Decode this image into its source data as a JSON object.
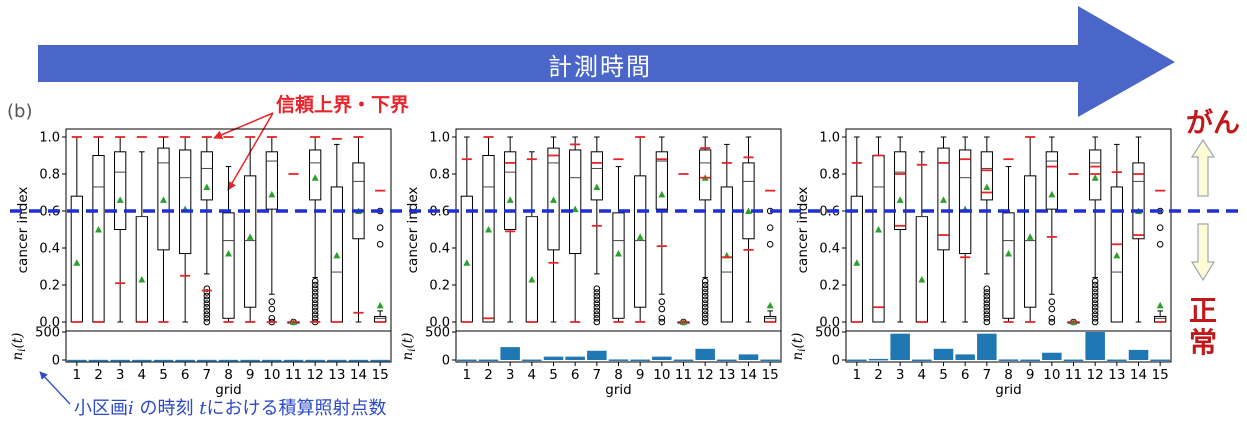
{
  "banner": {
    "label": "計測時間",
    "color": "#4a66c9"
  },
  "panel_tag": "(b)",
  "callout_bounds": {
    "text": "信頼上界・下界",
    "color": "#e8242b"
  },
  "callout_n": {
    "prefix": "小区画",
    "var_i": "i",
    "mid": " の時刻 ",
    "var_t": "t",
    "suffix": "における積算照射点数",
    "color": "#2c49c9"
  },
  "side_labels": {
    "top": "がん",
    "bottom": "正常",
    "color": "#c0181b",
    "arrow_fill": "#fffbd6",
    "arrow_stroke": "#9da8b4"
  },
  "threshold_line": {
    "value": 0.6,
    "color": "#1f2fd1"
  },
  "chart_data": [
    {
      "type": "box",
      "categories": [
        "1",
        "2",
        "3",
        "4",
        "5",
        "6",
        "7",
        "8",
        "9",
        "10",
        "11",
        "12",
        "13",
        "14",
        "15"
      ],
      "ylabel": "cancer index",
      "ylim": [
        0,
        1.0
      ],
      "yticks": [
        "0.0",
        "0.2",
        "0.4",
        "0.6",
        "0.8",
        "1.0"
      ],
      "xlabel": "grid",
      "box_stats": [
        {
          "q1": 0.0,
          "median": 0.0,
          "q3": 0.68,
          "wlo": 0.0,
          "whi": 1.0,
          "mean": 0.32,
          "out": []
        },
        {
          "q1": 0.0,
          "median": 0.73,
          "q3": 0.9,
          "wlo": 0.0,
          "whi": 1.0,
          "mean": 0.5,
          "out": []
        },
        {
          "q1": 0.5,
          "median": 0.81,
          "q3": 0.92,
          "wlo": 0.0,
          "whi": 1.0,
          "mean": 0.66,
          "out": []
        },
        {
          "q1": 0.0,
          "median": 0.57,
          "q3": 0.57,
          "wlo": 0.0,
          "whi": 0.92,
          "mean": 0.23,
          "out": []
        },
        {
          "q1": 0.39,
          "median": 0.86,
          "q3": 0.94,
          "wlo": 0.0,
          "whi": 1.0,
          "mean": 0.66,
          "out": []
        },
        {
          "q1": 0.37,
          "median": 0.78,
          "q3": 0.93,
          "wlo": 0.0,
          "whi": 1.0,
          "mean": 0.61,
          "out": []
        },
        {
          "q1": 0.66,
          "median": 0.83,
          "q3": 0.92,
          "wlo": 0.26,
          "whi": 1.0,
          "mean": 0.73,
          "out": [
            0.18,
            0.16,
            0.14,
            0.12,
            0.1,
            0.08,
            0.06,
            0.04,
            0.02,
            0.0
          ]
        },
        {
          "q1": 0.02,
          "median": 0.44,
          "q3": 0.59,
          "wlo": 0.0,
          "whi": 0.84,
          "mean": 0.37,
          "out": []
        },
        {
          "q1": 0.08,
          "median": 0.44,
          "q3": 0.79,
          "wlo": 0.0,
          "whi": 1.0,
          "mean": 0.46,
          "out": []
        },
        {
          "q1": 0.61,
          "median": 0.87,
          "q3": 0.92,
          "wlo": 0.15,
          "whi": 1.0,
          "mean": 0.69,
          "out": [
            0.11,
            0.07,
            0.02,
            0.0
          ]
        },
        {
          "q1": 0.0,
          "median": 0.0,
          "q3": 0.0,
          "wlo": 0.0,
          "whi": 0.0,
          "mean": 0.0,
          "out": [
            0.0
          ]
        },
        {
          "q1": 0.66,
          "median": 0.86,
          "q3": 0.93,
          "wlo": 0.24,
          "whi": 1.0,
          "mean": 0.78,
          "out": [
            0.22,
            0.2,
            0.18,
            0.16,
            0.14,
            0.12,
            0.1,
            0.08,
            0.06,
            0.04,
            0.02,
            0.0
          ]
        },
        {
          "q1": 0.0,
          "median": 0.27,
          "q3": 0.73,
          "wlo": 0.0,
          "whi": 0.96,
          "mean": 0.36,
          "out": []
        },
        {
          "q1": 0.45,
          "median": 0.76,
          "q3": 0.86,
          "wlo": 0.0,
          "whi": 1.0,
          "mean": 0.6,
          "out": []
        },
        {
          "q1": 0.0,
          "median": 0.02,
          "q3": 0.03,
          "wlo": 0.0,
          "whi": 0.06,
          "mean": 0.09,
          "out": [
            0.6,
            0.51,
            0.42
          ]
        }
      ],
      "bounds": [
        {
          "upper": 1.0,
          "lower": 0.0
        },
        {
          "upper": 1.0,
          "lower": 0.0
        },
        {
          "upper": 1.0,
          "lower": 0.21
        },
        {
          "upper": 1.0,
          "lower": 0.0
        },
        {
          "upper": 1.0,
          "lower": 0.0
        },
        {
          "upper": 1.0,
          "lower": 0.25
        },
        {
          "upper": 1.0,
          "lower": 0.17
        },
        {
          "upper": 1.0,
          "lower": 0.0
        },
        {
          "upper": 1.0,
          "lower": 0.0
        },
        {
          "upper": 1.0,
          "lower": 0.0
        },
        {
          "upper": 0.8,
          "lower": 0.0
        },
        {
          "upper": 1.0,
          "lower": 0.0
        },
        {
          "upper": 0.99,
          "lower": 0.0
        },
        {
          "upper": 1.0,
          "lower": 0.05
        },
        {
          "upper": 0.71,
          "lower": 0.0
        }
      ],
      "counts": {
        "ylabel": "n_i(t)",
        "ylim": [
          0,
          500
        ],
        "yticks": [
          "0",
          "500"
        ],
        "values": [
          3,
          3,
          3,
          3,
          3,
          3,
          3,
          3,
          3,
          3,
          3,
          3,
          3,
          3,
          3
        ],
        "color": "#1f77b4"
      }
    },
    {
      "type": "box",
      "categories": [
        "1",
        "2",
        "3",
        "4",
        "5",
        "6",
        "7",
        "8",
        "9",
        "10",
        "11",
        "12",
        "13",
        "14",
        "15"
      ],
      "ylabel": "cancer index",
      "ylim": [
        0,
        1.0
      ],
      "yticks": [
        "0.0",
        "0.2",
        "0.4",
        "0.6",
        "0.8",
        "1.0"
      ],
      "xlabel": "grid",
      "box_stats": [
        {
          "q1": 0.0,
          "median": 0.0,
          "q3": 0.68,
          "wlo": 0.0,
          "whi": 1.0,
          "mean": 0.32,
          "out": []
        },
        {
          "q1": 0.0,
          "median": 0.73,
          "q3": 0.9,
          "wlo": 0.0,
          "whi": 1.0,
          "mean": 0.5,
          "out": []
        },
        {
          "q1": 0.5,
          "median": 0.81,
          "q3": 0.92,
          "wlo": 0.0,
          "whi": 1.0,
          "mean": 0.66,
          "out": []
        },
        {
          "q1": 0.0,
          "median": 0.57,
          "q3": 0.57,
          "wlo": 0.0,
          "whi": 0.92,
          "mean": 0.23,
          "out": []
        },
        {
          "q1": 0.39,
          "median": 0.86,
          "q3": 0.94,
          "wlo": 0.0,
          "whi": 1.0,
          "mean": 0.66,
          "out": []
        },
        {
          "q1": 0.37,
          "median": 0.78,
          "q3": 0.93,
          "wlo": 0.0,
          "whi": 1.0,
          "mean": 0.61,
          "out": []
        },
        {
          "q1": 0.66,
          "median": 0.83,
          "q3": 0.92,
          "wlo": 0.26,
          "whi": 1.0,
          "mean": 0.73,
          "out": [
            0.18,
            0.16,
            0.14,
            0.12,
            0.1,
            0.08,
            0.06,
            0.04,
            0.02,
            0.0
          ]
        },
        {
          "q1": 0.02,
          "median": 0.44,
          "q3": 0.59,
          "wlo": 0.0,
          "whi": 0.84,
          "mean": 0.37,
          "out": []
        },
        {
          "q1": 0.08,
          "median": 0.44,
          "q3": 0.79,
          "wlo": 0.0,
          "whi": 1.0,
          "mean": 0.46,
          "out": []
        },
        {
          "q1": 0.61,
          "median": 0.87,
          "q3": 0.92,
          "wlo": 0.15,
          "whi": 1.0,
          "mean": 0.69,
          "out": [
            0.11,
            0.07,
            0.02,
            0.0
          ]
        },
        {
          "q1": 0.0,
          "median": 0.0,
          "q3": 0.0,
          "wlo": 0.0,
          "whi": 0.0,
          "mean": 0.0,
          "out": [
            0.0
          ]
        },
        {
          "q1": 0.66,
          "median": 0.86,
          "q3": 0.93,
          "wlo": 0.24,
          "whi": 1.0,
          "mean": 0.78,
          "out": [
            0.22,
            0.2,
            0.18,
            0.16,
            0.14,
            0.12,
            0.1,
            0.08,
            0.06,
            0.04,
            0.02,
            0.0
          ]
        },
        {
          "q1": 0.0,
          "median": 0.27,
          "q3": 0.73,
          "wlo": 0.0,
          "whi": 0.96,
          "mean": 0.36,
          "out": []
        },
        {
          "q1": 0.45,
          "median": 0.76,
          "q3": 0.86,
          "wlo": 0.0,
          "whi": 1.0,
          "mean": 0.6,
          "out": []
        },
        {
          "q1": 0.0,
          "median": 0.02,
          "q3": 0.03,
          "wlo": 0.0,
          "whi": 0.06,
          "mean": 0.09,
          "out": [
            0.6,
            0.51,
            0.42
          ]
        }
      ],
      "bounds": [
        {
          "upper": 0.88,
          "lower": 0.0
        },
        {
          "upper": 1.0,
          "lower": 0.02
        },
        {
          "upper": 0.86,
          "lower": 0.49
        },
        {
          "upper": 0.88,
          "lower": 0.0
        },
        {
          "upper": 0.9,
          "lower": 0.32
        },
        {
          "upper": 0.96,
          "lower": 0.0
        },
        {
          "upper": 0.86,
          "lower": 0.52
        },
        {
          "upper": 0.88,
          "lower": 0.0
        },
        {
          "upper": 1.0,
          "lower": 0.0
        },
        {
          "upper": 0.88,
          "lower": 0.41
        },
        {
          "upper": 0.8,
          "lower": 0.0
        },
        {
          "upper": 0.94,
          "lower": 0.78
        },
        {
          "upper": 0.86,
          "lower": 0.35
        },
        {
          "upper": 0.89,
          "lower": 0.39
        },
        {
          "upper": 0.71,
          "lower": 0.0
        }
      ],
      "counts": {
        "ylabel": "n_i(t)",
        "ylim": [
          0,
          500
        ],
        "yticks": [
          "0",
          "500"
        ],
        "values": [
          8,
          8,
          230,
          8,
          60,
          60,
          165,
          10,
          8,
          60,
          8,
          200,
          8,
          100,
          8
        ],
        "color": "#1f77b4"
      }
    },
    {
      "type": "box",
      "categories": [
        "1",
        "2",
        "3",
        "4",
        "5",
        "6",
        "7",
        "8",
        "9",
        "10",
        "11",
        "12",
        "13",
        "14",
        "15"
      ],
      "ylabel": "cancer index",
      "ylim": [
        0,
        1.0
      ],
      "yticks": [
        "0.0",
        "0.2",
        "0.4",
        "0.6",
        "0.8",
        "1.0"
      ],
      "xlabel": "grid",
      "box_stats": [
        {
          "q1": 0.0,
          "median": 0.0,
          "q3": 0.68,
          "wlo": 0.0,
          "whi": 1.0,
          "mean": 0.32,
          "out": []
        },
        {
          "q1": 0.0,
          "median": 0.73,
          "q3": 0.9,
          "wlo": 0.0,
          "whi": 1.0,
          "mean": 0.5,
          "out": []
        },
        {
          "q1": 0.5,
          "median": 0.81,
          "q3": 0.92,
          "wlo": 0.0,
          "whi": 1.0,
          "mean": 0.66,
          "out": []
        },
        {
          "q1": 0.0,
          "median": 0.57,
          "q3": 0.57,
          "wlo": 0.0,
          "whi": 0.92,
          "mean": 0.23,
          "out": []
        },
        {
          "q1": 0.39,
          "median": 0.86,
          "q3": 0.94,
          "wlo": 0.0,
          "whi": 1.0,
          "mean": 0.66,
          "out": []
        },
        {
          "q1": 0.37,
          "median": 0.78,
          "q3": 0.93,
          "wlo": 0.0,
          "whi": 1.0,
          "mean": 0.61,
          "out": []
        },
        {
          "q1": 0.66,
          "median": 0.83,
          "q3": 0.92,
          "wlo": 0.26,
          "whi": 1.0,
          "mean": 0.73,
          "out": [
            0.18,
            0.16,
            0.14,
            0.12,
            0.1,
            0.08,
            0.06,
            0.04,
            0.02,
            0.0
          ]
        },
        {
          "q1": 0.02,
          "median": 0.44,
          "q3": 0.59,
          "wlo": 0.0,
          "whi": 0.84,
          "mean": 0.37,
          "out": []
        },
        {
          "q1": 0.08,
          "median": 0.44,
          "q3": 0.79,
          "wlo": 0.0,
          "whi": 1.0,
          "mean": 0.46,
          "out": []
        },
        {
          "q1": 0.61,
          "median": 0.87,
          "q3": 0.92,
          "wlo": 0.15,
          "whi": 1.0,
          "mean": 0.69,
          "out": [
            0.11,
            0.07,
            0.02,
            0.0
          ]
        },
        {
          "q1": 0.0,
          "median": 0.0,
          "q3": 0.0,
          "wlo": 0.0,
          "whi": 0.0,
          "mean": 0.0,
          "out": [
            0.0
          ]
        },
        {
          "q1": 0.66,
          "median": 0.86,
          "q3": 0.93,
          "wlo": 0.24,
          "whi": 1.0,
          "mean": 0.78,
          "out": [
            0.22,
            0.2,
            0.18,
            0.16,
            0.14,
            0.12,
            0.1,
            0.08,
            0.06,
            0.04,
            0.02,
            0.0
          ]
        },
        {
          "q1": 0.0,
          "median": 0.27,
          "q3": 0.73,
          "wlo": 0.0,
          "whi": 0.96,
          "mean": 0.36,
          "out": []
        },
        {
          "q1": 0.45,
          "median": 0.76,
          "q3": 0.86,
          "wlo": 0.0,
          "whi": 1.0,
          "mean": 0.6,
          "out": []
        },
        {
          "q1": 0.0,
          "median": 0.02,
          "q3": 0.03,
          "wlo": 0.0,
          "whi": 0.06,
          "mean": 0.09,
          "out": [
            0.6,
            0.51,
            0.42
          ]
        }
      ],
      "bounds": [
        {
          "upper": 0.86,
          "lower": 0.0
        },
        {
          "upper": 0.9,
          "lower": 0.08
        },
        {
          "upper": 0.8,
          "lower": 0.52
        },
        {
          "upper": 0.85,
          "lower": 0.0
        },
        {
          "upper": 0.86,
          "lower": 0.47
        },
        {
          "upper": 0.88,
          "lower": 0.35
        },
        {
          "upper": 0.82,
          "lower": 0.7
        },
        {
          "upper": 0.88,
          "lower": 0.0
        },
        {
          "upper": 1.0,
          "lower": 0.0
        },
        {
          "upper": 0.84,
          "lower": 0.46
        },
        {
          "upper": 0.8,
          "lower": 0.0
        },
        {
          "upper": 0.84,
          "lower": 0.8
        },
        {
          "upper": 0.81,
          "lower": 0.42
        },
        {
          "upper": 0.8,
          "lower": 0.47
        },
        {
          "upper": 0.71,
          "lower": 0.0
        }
      ],
      "counts": {
        "ylabel": "n_i(t)",
        "ylim": [
          0,
          500
        ],
        "yticks": [
          "0",
          "500"
        ],
        "values": [
          8,
          20,
          470,
          8,
          200,
          100,
          470,
          10,
          8,
          130,
          8,
          500,
          8,
          180,
          8
        ],
        "color": "#1f77b4"
      }
    }
  ]
}
